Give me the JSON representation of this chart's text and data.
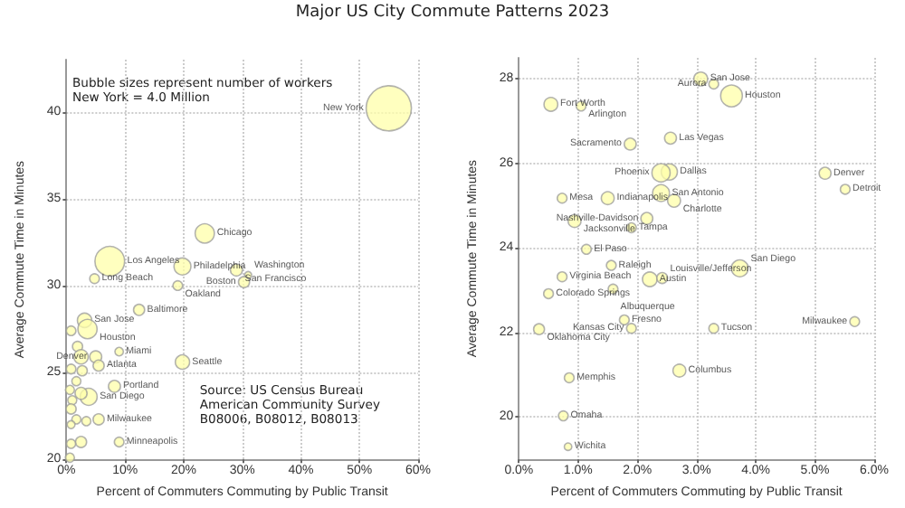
{
  "chart_data": [
    {
      "type": "bubble",
      "title": "Major US City Commute Patterns 2023",
      "xlabel": "Percent of Commuters Commuting by Public Transit",
      "ylabel": "Average Commute Time in Minutes",
      "grid": true,
      "marker": "circle",
      "xlim": [
        0,
        60
      ],
      "xticks": [
        {
          "value": 0,
          "label": "0%"
        },
        {
          "value": 10,
          "label": "10%"
        },
        {
          "value": 20,
          "label": "20%"
        },
        {
          "value": 30,
          "label": "30%"
        },
        {
          "value": 40,
          "label": "40%"
        },
        {
          "value": 50,
          "label": "50%"
        },
        {
          "value": 60,
          "label": "60%"
        }
      ],
      "ylim": [
        20,
        43
      ],
      "yticks": [
        20,
        25,
        30,
        35,
        40
      ],
      "series": [
        {
          "color": "#ffffaa",
          "x": [
            55.0,
            23.6,
            7.4,
            19.8,
            4.8,
            29.0,
            31.0,
            30.3,
            19.0,
            12.4,
            3.1,
            3.6,
            9.0,
            5.0,
            5.5,
            19.8,
            8.2,
            3.8,
            5.5,
            9.0,
            0.8,
            1.9,
            2.5,
            0.8,
            2.7,
            1.7,
            0.6,
            2.5,
            1.0,
            0.8,
            1.7,
            3.4,
            0.8,
            2.5,
            0.8,
            0.6
          ],
          "values": [
            40.2,
            33.0,
            31.4,
            31.1,
            30.4,
            30.9,
            30.6,
            30.2,
            30.0,
            28.6,
            28.0,
            27.5,
            26.2,
            25.9,
            25.4,
            25.6,
            24.2,
            23.6,
            22.3,
            21.0,
            27.4,
            26.5,
            25.9,
            25.2,
            25.1,
            24.5,
            24.0,
            23.8,
            23.4,
            22.9,
            22.3,
            22.2,
            22.0,
            21.0,
            20.9,
            20.1
          ],
          "sizes": [
            1,
            0.18,
            0.43,
            0.14,
            0.045,
            0.07,
            0.025,
            0.06,
            0.045,
            0.06,
            0.1,
            0.18,
            0.035,
            0.07,
            0.06,
            0.1,
            0.07,
            0.14,
            0.06,
            0.045,
            0.045,
            0.05,
            0.1,
            0.045,
            0.05,
            0.04,
            0.04,
            0.07,
            0.04,
            0.05,
            0.04,
            0.04,
            0.03,
            0.06,
            0.04,
            0.04
          ]
        }
      ],
      "annotations": [
        "Bubble sizes represent number of workers\nNew York = 4.0 Million",
        "Source: US Census Bureau\nAmerican Community Survey\nB08006, B08012, B08013",
        {
          "text": "New York",
          "x": 55.0,
          "y": 40.2
        },
        {
          "text": "Chicago",
          "x": 23.6,
          "y": 33.0
        },
        {
          "text": "Los Angeles",
          "x": 7.4,
          "y": 31.4
        },
        {
          "text": "Philadelphia",
          "x": 19.8,
          "y": 31.1
        },
        {
          "text": "Long Beach",
          "x": 4.8,
          "y": 30.4
        },
        {
          "text": "San Francisco",
          "x": 29.0,
          "y": 30.9
        },
        {
          "text": "Washington",
          "x": 31.0,
          "y": 30.6
        },
        {
          "text": "Boston",
          "x": 30.3,
          "y": 30.2
        },
        {
          "text": "Oakland",
          "x": 19.0,
          "y": 30.0
        },
        {
          "text": "Baltimore",
          "x": 12.4,
          "y": 28.6
        },
        {
          "text": "San Jose",
          "x": 3.1,
          "y": 28.0
        },
        {
          "text": "Houston",
          "x": 3.6,
          "y": 27.5
        },
        {
          "text": "Miami",
          "x": 9.0,
          "y": 26.2
        },
        {
          "text": "Denver",
          "x": 5.0,
          "y": 25.9
        },
        {
          "text": "Atlanta",
          "x": 5.5,
          "y": 25.4
        },
        {
          "text": "Seattle",
          "x": 19.8,
          "y": 25.6
        },
        {
          "text": "Portland",
          "x": 8.2,
          "y": 24.2
        },
        {
          "text": "San Diego",
          "x": 3.8,
          "y": 23.6
        },
        {
          "text": "Milwaukee",
          "x": 5.5,
          "y": 22.3
        },
        {
          "text": "Minneapolis",
          "x": 9.0,
          "y": 21.0
        }
      ]
    },
    {
      "type": "bubble",
      "xlabel": "Percent of Commuters Commuting by Public Transit",
      "ylabel": "Average Commute Time in Minutes",
      "grid": true,
      "marker": "circle",
      "xlim": [
        0,
        6
      ],
      "xticks": [
        {
          "value": 0,
          "label": "0.0%"
        },
        {
          "value": 1,
          "label": "1.0%"
        },
        {
          "value": 2,
          "label": "2.0%"
        },
        {
          "value": 3,
          "label": "3.0%"
        },
        {
          "value": 4,
          "label": "4.0%"
        },
        {
          "value": 5,
          "label": "5.0%"
        },
        {
          "value": 6,
          "label": "6.0%"
        }
      ],
      "ylim": [
        19,
        28.5
      ],
      "yticks": [
        20,
        22,
        24,
        26,
        28
      ],
      "series": [
        {
          "color": "#ffffaa",
          "x": [
            3.07,
            3.29,
            3.59,
            0.54,
            1.05,
            2.56,
            1.88,
            2.54,
            2.4,
            5.17,
            5.51,
            0.73,
            1.5,
            2.4,
            2.62,
            2.16,
            0.94,
            1.9,
            1.14,
            1.56,
            0.73,
            2.21,
            2.42,
            3.73,
            0.5,
            1.59,
            1.78,
            1.9,
            0.34,
            3.29,
            5.67,
            0.85,
            2.71,
            0.75,
            0.83
          ],
          "values": [
            28.0,
            27.88,
            27.6,
            27.4,
            27.36,
            26.6,
            26.46,
            25.8,
            25.78,
            25.77,
            25.39,
            25.18,
            25.18,
            25.3,
            25.12,
            24.7,
            24.64,
            24.48,
            23.97,
            23.59,
            23.32,
            23.26,
            23.29,
            23.52,
            22.92,
            23.03,
            22.3,
            22.1,
            22.08,
            22.1,
            22.26,
            20.93,
            21.1,
            20.03,
            19.3
          ],
          "sizes": [
            0.4,
            0.2,
            1,
            0.4,
            0.2,
            0.3,
            0.3,
            0.55,
            0.7,
            0.3,
            0.2,
            0.2,
            0.35,
            0.6,
            0.35,
            0.3,
            0.35,
            0.2,
            0.2,
            0.2,
            0.2,
            0.45,
            0.25,
            0.6,
            0.2,
            0.2,
            0.2,
            0.2,
            0.25,
            0.2,
            0.2,
            0.2,
            0.35,
            0.2,
            0.12
          ]
        }
      ],
      "annotations": [
        {
          "text": "San Jose",
          "x": 3.07,
          "y": 28.0
        },
        {
          "text": "Aurora",
          "x": 3.29,
          "y": 27.88
        },
        {
          "text": "Houston",
          "x": 3.59,
          "y": 27.6
        },
        {
          "text": "Fort Worth",
          "x": 0.54,
          "y": 27.4
        },
        {
          "text": "Arlington",
          "x": 1.05,
          "y": 27.36
        },
        {
          "text": "Las Vegas",
          "x": 2.56,
          "y": 26.6
        },
        {
          "text": "Sacramento",
          "x": 1.88,
          "y": 26.46
        },
        {
          "text": "Dallas",
          "x": 2.54,
          "y": 25.8
        },
        {
          "text": "Phoenix",
          "x": 2.4,
          "y": 25.78
        },
        {
          "text": "Denver",
          "x": 5.17,
          "y": 25.77
        },
        {
          "text": "Detroit",
          "x": 5.51,
          "y": 25.39
        },
        {
          "text": "Mesa",
          "x": 0.73,
          "y": 25.18
        },
        {
          "text": "Indianapolis",
          "x": 1.5,
          "y": 25.18
        },
        {
          "text": "San Antonio",
          "x": 2.4,
          "y": 25.3
        },
        {
          "text": "Charlotte",
          "x": 2.62,
          "y": 25.12
        },
        {
          "text": "Nashville-Davidson",
          "x": 2.16,
          "y": 24.7
        },
        {
          "text": "Jacksonville",
          "x": 0.94,
          "y": 24.64
        },
        {
          "text": "Tampa",
          "x": 1.9,
          "y": 24.48
        },
        {
          "text": "El Paso",
          "x": 1.14,
          "y": 23.97
        },
        {
          "text": "Raleigh",
          "x": 1.56,
          "y": 23.59
        },
        {
          "text": "Virginia Beach",
          "x": 0.73,
          "y": 23.32
        },
        {
          "text": "Austin",
          "x": 2.21,
          "y": 23.26
        },
        {
          "text": "Louisville/Jefferson",
          "x": 2.42,
          "y": 23.29
        },
        {
          "text": "San Diego",
          "x": 3.73,
          "y": 23.52
        },
        {
          "text": "Colorado Springs",
          "x": 0.5,
          "y": 22.92
        },
        {
          "text": "Albuquerque",
          "x": 1.59,
          "y": 23.03
        },
        {
          "text": "Fresno",
          "x": 1.78,
          "y": 22.3
        },
        {
          "text": "Kansas City",
          "x": 1.9,
          "y": 22.1
        },
        {
          "text": "Oklahoma City",
          "x": 0.34,
          "y": 22.08
        },
        {
          "text": "Tucson",
          "x": 3.29,
          "y": 22.1
        },
        {
          "text": "Milwaukee",
          "x": 5.67,
          "y": 22.26
        },
        {
          "text": "Memphis",
          "x": 0.85,
          "y": 20.93
        },
        {
          "text": "Columbus",
          "x": 2.71,
          "y": 21.1
        },
        {
          "text": "Omaha",
          "x": 0.75,
          "y": 20.03
        },
        {
          "text": "Wichita",
          "x": 0.83,
          "y": 19.3
        }
      ]
    }
  ]
}
